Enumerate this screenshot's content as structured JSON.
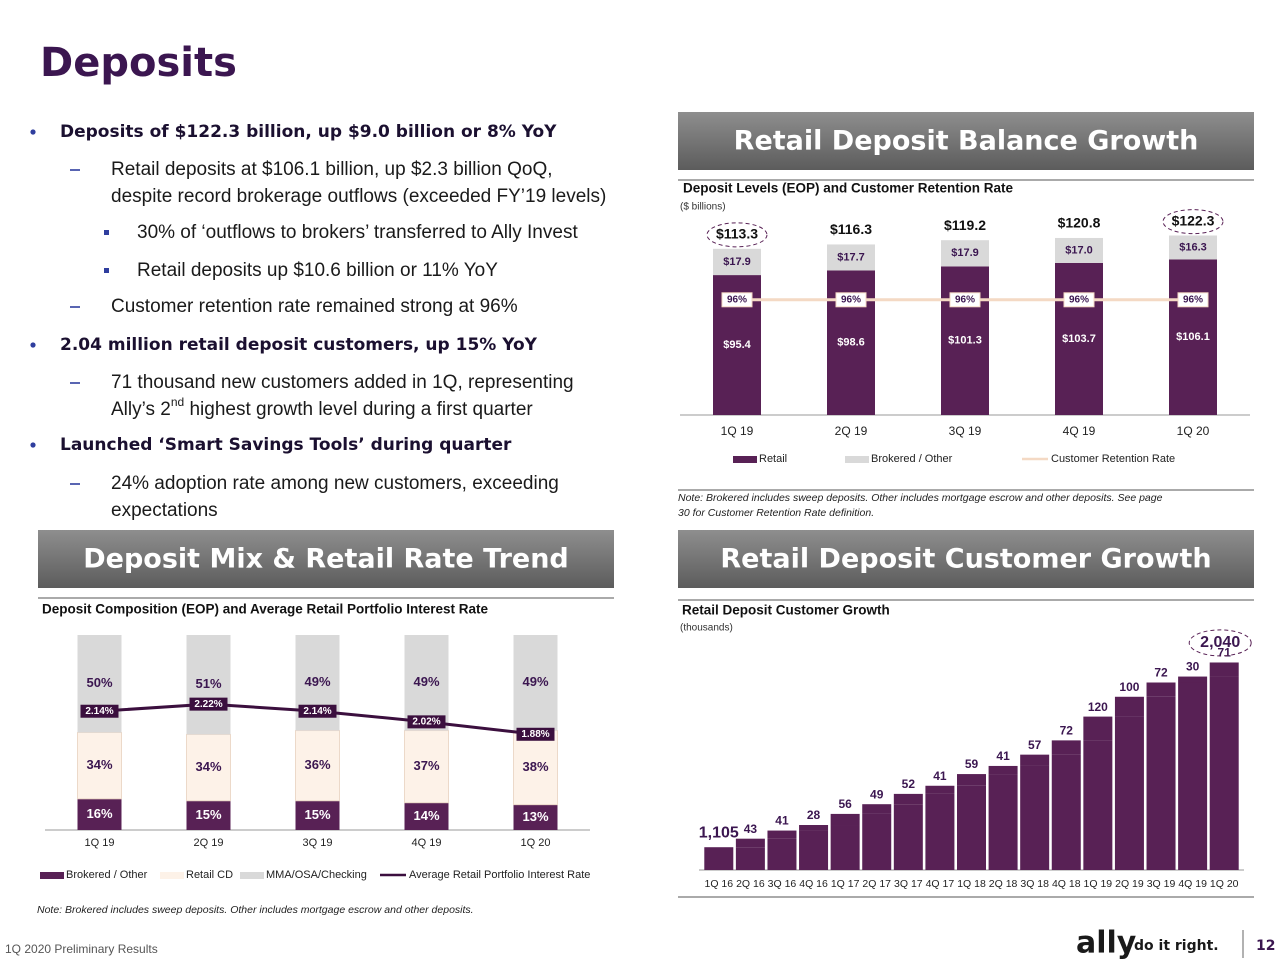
{
  "slide": {
    "title": "Deposits",
    "bullets": [
      {
        "level": 1,
        "lines": [
          {
            "text": "Deposits of $122.3 billion, up $9.0 billion or 8% YoY"
          }
        ]
      },
      {
        "level": 2,
        "lines": [
          {
            "text": "Retail deposits at $106.1 billion, up $2.3 billion QoQ,"
          },
          {
            "text": "despite record brokerage outflows (exceeded FY’19 levels)"
          }
        ]
      },
      {
        "level": 3,
        "lines": [
          {
            "text": "30% of ‘outflows to brokers’ transferred to Ally Invest"
          }
        ]
      },
      {
        "level": 3,
        "lines": [
          {
            "text": "Retail deposits up $10.6 billion or 11% YoY"
          }
        ]
      },
      {
        "level": 2,
        "lines": [
          {
            "text": "Customer retention rate remained strong at 96%"
          }
        ]
      },
      {
        "level": 1,
        "lines": [
          {
            "text": "2.04 million retail deposit customers, up 15% YoY"
          }
        ]
      },
      {
        "level": 2,
        "lines": [
          {
            "text": "71 thousand new customers added in 1Q, representing"
          },
          {
            "text": "Ally’s 2",
            "sup": "nd",
            "after": " highest growth level during a first quarter"
          }
        ]
      },
      {
        "level": 1,
        "lines": [
          {
            "text": "Launched ‘Smart Savings Tools’ during quarter"
          }
        ]
      },
      {
        "level": 2,
        "lines": [
          {
            "text": "24% adoption rate among new customers, exceeding"
          },
          {
            "text": "expectations"
          }
        ]
      }
    ],
    "sections": [
      "Retail Deposit Balance Growth",
      "Deposit Mix & Retail Rate Trend",
      "Retail Deposit Customer Growth"
    ],
    "footer": {
      "text": "1Q 2020 Preliminary Results",
      "logo": "ally",
      "tagline": "do it right.",
      "page": 12
    }
  },
  "chart_data": [
    {
      "type": "bar",
      "stacked": true,
      "title": "Deposit Levels (EOP) and Customer Retention Rate",
      "subtitle": "($ billions)",
      "categories": [
        "1Q 19",
        "2Q 19",
        "3Q 19",
        "4Q 19",
        "1Q 20"
      ],
      "series": [
        {
          "name": "Retail",
          "color": "#582155",
          "values": [
            95.4,
            98.6,
            101.3,
            103.7,
            106.1
          ],
          "value_labels": [
            "$95.4",
            "$98.6",
            "$101.3",
            "$103.7",
            "$106.1"
          ]
        },
        {
          "name": "Brokered / Other",
          "color": "#d9d9d9",
          "values": [
            17.9,
            17.7,
            17.9,
            17.0,
            16.3
          ],
          "value_labels": [
            "$17.9",
            "$17.7",
            "$17.9",
            "$17.0",
            "$16.3"
          ]
        },
        {
          "name": "Customer Retention Rate",
          "type": "line",
          "axis": "y2",
          "color": "#f4d9c4",
          "values": [
            96,
            96,
            96,
            96,
            96
          ],
          "value_labels": [
            "96%",
            "96%",
            "96%",
            "96%",
            "96%"
          ]
        }
      ],
      "totals": [
        113.3,
        116.3,
        119.2,
        120.8,
        122.3
      ],
      "total_labels": [
        "$113.3",
        "$116.3",
        "$119.2",
        "$120.8",
        "$122.3"
      ],
      "ylim": [
        0,
        135
      ],
      "y2lim": [
        0,
        165
      ],
      "note": "Note: Brokered includes sweep deposits. Other includes mortgage escrow and other deposits. See page 30 for Customer Retention Rate definition."
    },
    {
      "type": "bar",
      "stacked": true,
      "title": "Deposit Composition (EOP) and Average Retail Portfolio Interest Rate",
      "categories": [
        "1Q 19",
        "2Q 19",
        "3Q 19",
        "4Q 19",
        "1Q 20"
      ],
      "series": [
        {
          "name": "Brokered / Other",
          "color": "#582155",
          "values": [
            16,
            15,
            15,
            14,
            13
          ],
          "value_labels": [
            "16%",
            "15%",
            "15%",
            "14%",
            "13%"
          ]
        },
        {
          "name": "Retail CD",
          "color": "#fdf2e8",
          "values": [
            34,
            34,
            36,
            37,
            38
          ],
          "value_labels": [
            "34%",
            "34%",
            "36%",
            "37%",
            "38%"
          ]
        },
        {
          "name": "MMA/OSA/Checking",
          "color": "#d9d9d9",
          "values": [
            50,
            51,
            49,
            49,
            49
          ],
          "value_labels": [
            "50%",
            "51%",
            "49%",
            "49%",
            "49%"
          ]
        },
        {
          "name": "Average Retail Portfolio Interest Rate",
          "type": "line",
          "axis": "y2",
          "color": "#3b0f3e",
          "values": [
            2.14,
            2.22,
            2.14,
            2.02,
            1.88
          ],
          "value_labels": [
            "2.14%",
            "2.22%",
            "2.14%",
            "2.02%",
            "1.88%"
          ]
        }
      ],
      "ylim": [
        0,
        100
      ],
      "y2lim": [
        0.8,
        3.0
      ],
      "note": "Note: Brokered includes sweep deposits. Other includes mortgage escrow and other deposits."
    },
    {
      "type": "waterfall",
      "title": "Retail Deposit Customer Growth",
      "subtitle": "(thousands)",
      "categories": [
        "1Q 16",
        "2Q 16",
        "3Q 16",
        "4Q 16",
        "1Q 17",
        "2Q 17",
        "3Q 17",
        "4Q 17",
        "1Q 18",
        "2Q 18",
        "3Q 18",
        "4Q 18",
        "1Q 19",
        "2Q 19",
        "3Q 19",
        "4Q 19",
        "1Q 20"
      ],
      "values": [
        1105,
        43,
        41,
        28,
        56,
        49,
        52,
        41,
        59,
        41,
        57,
        72,
        120,
        100,
        72,
        30,
        71
      ],
      "value_labels": [
        "1,105",
        "43",
        "41",
        "28",
        "56",
        "49",
        "52",
        "41",
        "59",
        "41",
        "57",
        "72",
        "120",
        "100",
        "72",
        "30",
        "71"
      ],
      "total": 2040,
      "total_label": "2,040",
      "color": "#582155",
      "ylim": [
        990,
        2100
      ]
    }
  ]
}
